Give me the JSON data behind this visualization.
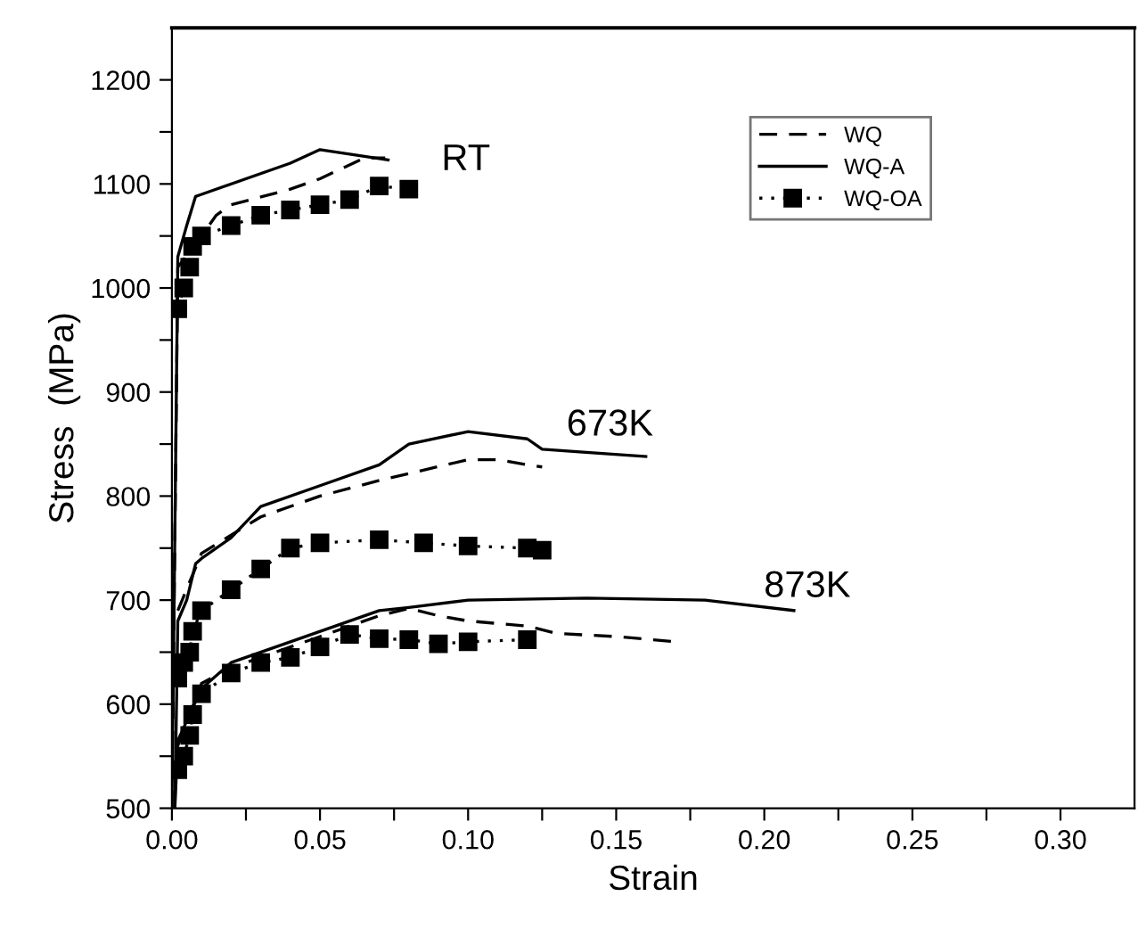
{
  "chart_data": {
    "type": "line",
    "xlabel": "Strain",
    "ylabel": "Stress  (MPa)",
    "xlim": [
      0,
      0.325
    ],
    "ylim": [
      500,
      1250
    ],
    "xticks": [
      {
        "value": 0,
        "label": "0.00"
      },
      {
        "value": 0.025,
        "label": null
      },
      0.05,
      {
        "value": 0.075,
        "label": null
      },
      {
        "value": 0.1,
        "label": "0.10"
      },
      {
        "value": 0.125,
        "label": null
      },
      0.15,
      {
        "value": 0.175,
        "label": null
      },
      {
        "value": 0.2,
        "label": "0.20"
      },
      {
        "value": 0.225,
        "label": null
      },
      0.25,
      {
        "value": 0.275,
        "label": null
      },
      {
        "value": 0.3,
        "label": "0.30"
      }
    ],
    "yticks": [
      500,
      {
        "value": 550,
        "label": null
      },
      600,
      {
        "value": 650,
        "label": null
      },
      700,
      {
        "value": 750,
        "label": null
      },
      800,
      {
        "value": 850,
        "label": null
      },
      900,
      {
        "value": 950,
        "label": null
      },
      1000,
      {
        "value": 1050,
        "label": null
      },
      1100,
      {
        "value": 1150,
        "label": null
      },
      1200
    ],
    "grid": false,
    "legend": "top right",
    "annotations": [
      "RT",
      "673K",
      "873K"
    ],
    "series": [
      {
        "name": "WQ",
        "line_style": "dashed",
        "marker": "none",
        "color": "#000000",
        "x": [
          0,
          0.002,
          0.01,
          0.015,
          0.02,
          0.04,
          0.05,
          0.065,
          0.072
        ],
        "values": [
          500,
          1020,
          1050,
          1070,
          1080,
          1095,
          1105,
          1125,
          1125
        ]
      },
      {
        "name": "WQ-A",
        "line_style": "solid",
        "marker": "none",
        "color": "#000000",
        "x": [
          0,
          0.002,
          0.005,
          0.008,
          0.01,
          0.04,
          0.05,
          0.073
        ],
        "values": [
          500,
          1030,
          1060,
          1088,
          1090,
          1120,
          1133,
          1123
        ]
      },
      {
        "name": "WQ-OA",
        "line_style": "dotted",
        "marker": "square",
        "color": "#000000",
        "x": [
          0.002,
          0.004,
          0.006,
          0.007,
          0.01,
          0.02,
          0.03,
          0.04,
          0.05,
          0.06,
          0.07,
          0.08
        ],
        "values": [
          980,
          1000,
          1020,
          1040,
          1050,
          1060,
          1070,
          1075,
          1080,
          1085,
          1098,
          1095
        ]
      },
      {
        "line_style": "dashed",
        "marker": "none",
        "color": "#000000",
        "x": [
          0.002,
          0.01,
          0.03,
          0.05,
          0.07,
          0.1,
          0.11,
          0.12,
          0.125
        ],
        "values": [
          690,
          745,
          780,
          800,
          815,
          835,
          835,
          830,
          828
        ]
      },
      {
        "line_style": "solid",
        "marker": "none",
        "color": "#000000",
        "x": [
          0.001,
          0.002,
          0.005,
          0.008,
          0.01,
          0.02,
          0.03,
          0.05,
          0.07,
          0.08,
          0.1,
          0.12,
          0.125,
          0.16
        ],
        "values": [
          500,
          680,
          700,
          735,
          740,
          760,
          790,
          810,
          830,
          850,
          862,
          855,
          845,
          838
        ]
      },
      {
        "line_style": "dotted",
        "marker": "square",
        "color": "#000000",
        "x": [
          0.002,
          0.004,
          0.006,
          0.007,
          0.01,
          0.02,
          0.03,
          0.04,
          0.05,
          0.07,
          0.085,
          0.1,
          0.12,
          0.125
        ],
        "values": [
          625,
          640,
          650,
          670,
          690,
          710,
          730,
          750,
          755,
          758,
          755,
          752,
          750,
          748
        ]
      },
      {
        "line_style": "dashed",
        "marker": "none",
        "color": "#000000",
        "x": [
          0.002,
          0.01,
          0.02,
          0.05,
          0.07,
          0.08,
          0.09,
          0.1,
          0.12,
          0.13,
          0.15,
          0.17
        ],
        "values": [
          560,
          620,
          635,
          665,
          685,
          692,
          685,
          680,
          675,
          668,
          665,
          660
        ]
      },
      {
        "line_style": "solid",
        "marker": "none",
        "color": "#000000",
        "x": [
          0.001,
          0.002,
          0.01,
          0.02,
          0.04,
          0.07,
          0.08,
          0.1,
          0.14,
          0.18,
          0.21
        ],
        "values": [
          500,
          565,
          615,
          640,
          660,
          690,
          693,
          700,
          702,
          700,
          690
        ]
      },
      {
        "line_style": "dotted",
        "marker": "square",
        "color": "#000000",
        "x": [
          0.002,
          0.004,
          0.006,
          0.007,
          0.01,
          0.02,
          0.03,
          0.04,
          0.05,
          0.06,
          0.07,
          0.08,
          0.09,
          0.1,
          0.12
        ],
        "values": [
          537,
          550,
          570,
          590,
          610,
          630,
          640,
          645,
          655,
          667,
          663,
          662,
          658,
          660,
          662
        ]
      }
    ]
  }
}
